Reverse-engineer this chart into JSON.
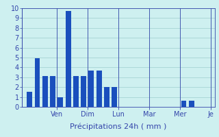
{
  "bars": [
    {
      "x": 1,
      "height": 1.5
    },
    {
      "x": 2,
      "height": 4.9
    },
    {
      "x": 3,
      "height": 3.1
    },
    {
      "x": 4,
      "height": 3.1
    },
    {
      "x": 5,
      "height": 1.0
    },
    {
      "x": 6,
      "height": 9.7
    },
    {
      "x": 7,
      "height": 3.1
    },
    {
      "x": 8,
      "height": 3.1
    },
    {
      "x": 9,
      "height": 3.7
    },
    {
      "x": 10,
      "height": 3.7
    },
    {
      "x": 11,
      "height": 2.0
    },
    {
      "x": 12,
      "height": 2.0
    },
    {
      "x": 13,
      "height": 0.0
    },
    {
      "x": 14,
      "height": 0.0
    },
    {
      "x": 15,
      "height": 0.0
    },
    {
      "x": 16,
      "height": 0.0
    },
    {
      "x": 17,
      "height": 0.0
    },
    {
      "x": 18,
      "height": 0.0
    },
    {
      "x": 19,
      "height": 0.0
    },
    {
      "x": 20,
      "height": 0.0
    },
    {
      "x": 21,
      "height": 0.6
    },
    {
      "x": 22,
      "height": 0.6
    },
    {
      "x": 23,
      "height": 0.0
    },
    {
      "x": 24,
      "height": 0.0
    }
  ],
  "bar_color": "#1a4fbd",
  "background_color": "#cef0f0",
  "grid_color": "#9ecece",
  "axis_color": "#3344aa",
  "text_color": "#3344aa",
  "xlabel": "Précipitations 24h ( mm )",
  "ylim": [
    0,
    10
  ],
  "yticks": [
    0,
    1,
    2,
    3,
    4,
    5,
    6,
    7,
    8,
    9,
    10
  ],
  "xlim": [
    0,
    25
  ],
  "day_ticks": [
    4.5,
    8.5,
    12.5,
    16.5,
    20.5,
    24.5
  ],
  "day_labels": [
    "Ven",
    "Dim",
    "Lun",
    "Mar",
    "Mer",
    "Je"
  ],
  "day_sep_x": [
    0,
    4.5,
    8.5,
    12.5,
    16.5,
    20.5,
    24.5
  ],
  "xlabel_fontsize": 8,
  "tick_fontsize": 7,
  "daytick_fontsize": 7
}
